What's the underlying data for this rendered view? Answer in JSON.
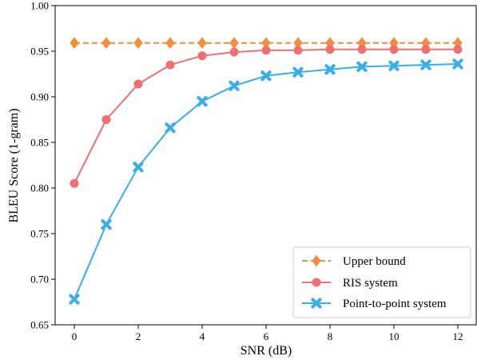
{
  "chart_data": {
    "type": "line",
    "xlabel": "SNR (dB)",
    "ylabel": "BLEU Score (1-gram)",
    "xlim": [
      -0.6,
      12.6
    ],
    "ylim": [
      0.65,
      1.0
    ],
    "xticks": [
      0,
      2,
      4,
      6,
      8,
      10,
      12
    ],
    "yticks": [
      0.65,
      0.7,
      0.75,
      0.8,
      0.85,
      0.9,
      0.95,
      1.0
    ],
    "ytick_labels": [
      "0.65",
      "0.70",
      "0.75",
      "0.80",
      "0.85",
      "0.90",
      "0.95",
      "1.00"
    ],
    "grid": false,
    "legend_position": "lower-right",
    "x": [
      0,
      1,
      2,
      3,
      4,
      5,
      6,
      7,
      8,
      9,
      10,
      11,
      12
    ],
    "series": [
      {
        "name": "Upper bound",
        "color": "#f28e3b",
        "linestyle": "dashed",
        "marker": "diamond",
        "values": [
          0.959,
          0.959,
          0.959,
          0.959,
          0.959,
          0.959,
          0.959,
          0.959,
          0.959,
          0.959,
          0.959,
          0.959,
          0.959
        ]
      },
      {
        "name": "RIS system",
        "color": "#ee7070",
        "linestyle": "solid",
        "marker": "circle",
        "values": [
          0.805,
          0.875,
          0.914,
          0.935,
          0.945,
          0.949,
          0.951,
          0.951,
          0.952,
          0.952,
          0.952,
          0.952,
          0.952
        ]
      },
      {
        "name": "Point-to-point system",
        "color": "#3aaee8",
        "linestyle": "solid",
        "marker": "x",
        "values": [
          0.678,
          0.76,
          0.823,
          0.866,
          0.895,
          0.912,
          0.923,
          0.927,
          0.93,
          0.933,
          0.934,
          0.935,
          0.936
        ]
      }
    ]
  }
}
